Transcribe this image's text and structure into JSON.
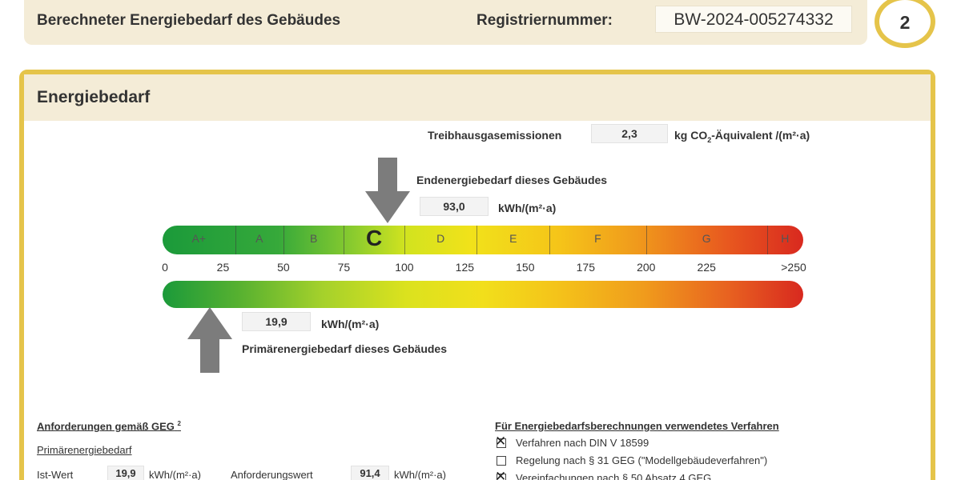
{
  "header": {
    "title": "Berechneter Energiebedarf des Gebäudes",
    "reg_label": "Registriernummer:",
    "reg_value": "BW-2024-005274332",
    "page_number": "2"
  },
  "panel": {
    "title": "Energiebedarf",
    "ghg_label": "Treibhausgasemissionen",
    "ghg_value": "2,3",
    "ghg_unit_pre": "kg CO",
    "ghg_unit_sub": "2",
    "ghg_unit_post": "-Äquivalent /(m²·a)",
    "end_label": "Endenergiebedarf dieses Gebäudes",
    "end_value": "93,0",
    "end_unit": "kWh/(m²·a)",
    "primary_value": "19,9",
    "primary_unit": "kWh/(m²·a)",
    "primary_label": "Primärenergiebedarf dieses Gebäudes"
  },
  "scale": {
    "classes": [
      {
        "label": "A+",
        "from": 0,
        "to": 30
      },
      {
        "label": "A",
        "from": 30,
        "to": 50
      },
      {
        "label": "B",
        "from": 50,
        "to": 75
      },
      {
        "label": "C",
        "from": 75,
        "to": 100
      },
      {
        "label": "D",
        "from": 100,
        "to": 130
      },
      {
        "label": "E",
        "from": 130,
        "to": 160
      },
      {
        "label": "F",
        "from": 160,
        "to": 200
      },
      {
        "label": "G",
        "from": 200,
        "to": 250
      },
      {
        "label": "H",
        "from": 250,
        "to": 265
      }
    ],
    "highlight_class": "C",
    "ticks": [
      "0",
      "25",
      "50",
      "75",
      "100",
      "125",
      "150",
      "175",
      "200",
      "225",
      ">250"
    ],
    "end_energy_value": 93.0,
    "primary_energy_value": 19.9
  },
  "requirements": {
    "heading": "Anforderungen gemäß GEG",
    "heading_sup": "2",
    "sub": "Primärenergiebedarf",
    "ist_label": "Ist-Wert",
    "ist_value": "19,9",
    "ist_unit": "kWh/(m²·a)",
    "anf_label": "Anforderungswert",
    "anf_value": "91,4",
    "anf_unit": "kWh/(m²·a)"
  },
  "method": {
    "heading": "Für Energiebedarfsberechnungen verwendetes Verfahren",
    "options": [
      {
        "label": "Verfahren nach DIN V 18599",
        "checked": true
      },
      {
        "label": "Regelung nach § 31 GEG (\"Modellgebäudeverfahren\")",
        "checked": false
      },
      {
        "label": "Vereinfachungen nach § 50 Absatz 4 GEG",
        "checked": true
      }
    ]
  },
  "colors": {
    "accent_border": "#e5c44a",
    "header_bg": "#f4ecd7",
    "arrow_gray": "#7c7c7c"
  }
}
